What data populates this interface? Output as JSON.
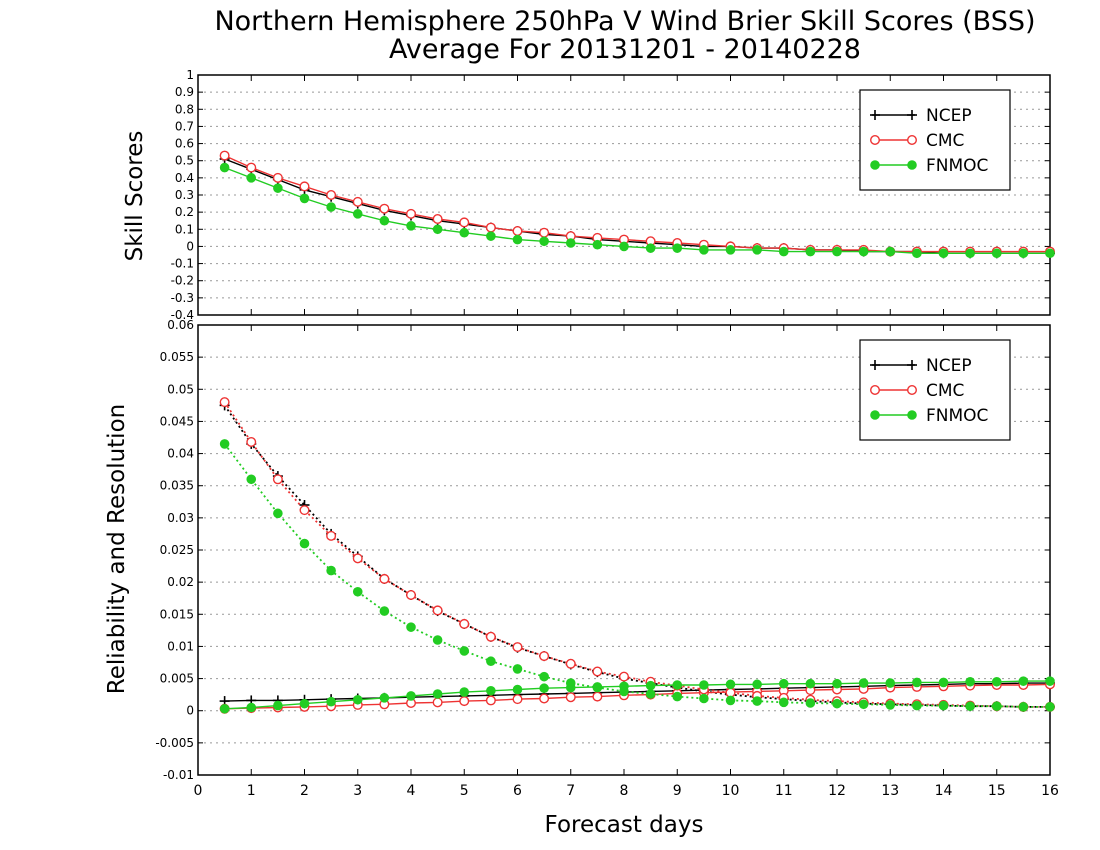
{
  "chart_data": [
    {
      "type": "line",
      "title": "Northern Hemisphere 250hPa V Wind Brier Skill Scores (BSS)",
      "subtitle": "Average For 20131201 - 20140228",
      "xlabel": "Forecast days",
      "ylabel": "Skill Scores",
      "xlim": [
        0,
        16
      ],
      "ylim": [
        -0.4,
        1
      ],
      "x_ticks": [
        "0",
        "1",
        "2",
        "3",
        "4",
        "5",
        "6",
        "7",
        "8",
        "9",
        "10",
        "11",
        "12",
        "13",
        "14",
        "15",
        "16"
      ],
      "y_ticks": [
        "-0.4",
        "-0.3",
        "-0.2",
        "-0.1",
        "0",
        "0.1",
        "0.2",
        "0.3",
        "0.4",
        "0.5",
        "0.6",
        "0.7",
        "0.8",
        "0.9",
        "1"
      ],
      "grid": true,
      "legend_position": "top-right",
      "x": [
        0.5,
        1,
        1.5,
        2,
        2.5,
        3,
        3.5,
        4,
        4.5,
        5,
        5.5,
        6,
        6.5,
        7,
        7.5,
        8,
        8.5,
        9,
        9.5,
        10,
        10.5,
        11,
        11.5,
        12,
        12.5,
        13,
        13.5,
        14,
        14.5,
        15,
        15.5,
        16
      ],
      "series": [
        {
          "name": "NCEP",
          "color": "#000000",
          "marker": "plus",
          "values": [
            0.51,
            0.45,
            0.39,
            0.33,
            0.29,
            0.25,
            0.21,
            0.18,
            0.15,
            0.13,
            0.11,
            0.09,
            0.07,
            0.06,
            0.04,
            0.03,
            0.02,
            0.01,
            0.0,
            0.0,
            -0.01,
            -0.01,
            -0.02,
            -0.02,
            -0.03,
            -0.03,
            -0.03,
            -0.04,
            -0.04,
            -0.04,
            -0.04,
            -0.04
          ]
        },
        {
          "name": "CMC",
          "color": "#ee3333",
          "marker": "open-circle",
          "values": [
            0.53,
            0.46,
            0.4,
            0.35,
            0.3,
            0.26,
            0.22,
            0.19,
            0.16,
            0.14,
            0.11,
            0.09,
            0.08,
            0.06,
            0.05,
            0.04,
            0.03,
            0.02,
            0.01,
            0.0,
            -0.01,
            -0.01,
            -0.02,
            -0.02,
            -0.02,
            -0.03,
            -0.03,
            -0.03,
            -0.03,
            -0.03,
            -0.03,
            -0.03
          ]
        },
        {
          "name": "FNMOC",
          "color": "#22cc22",
          "marker": "filled-circle",
          "values": [
            0.46,
            0.4,
            0.34,
            0.28,
            0.23,
            0.19,
            0.15,
            0.12,
            0.1,
            0.08,
            0.06,
            0.04,
            0.03,
            0.02,
            0.01,
            0.0,
            -0.01,
            -0.01,
            -0.02,
            -0.02,
            -0.02,
            -0.03,
            -0.03,
            -0.03,
            -0.03,
            -0.03,
            -0.04,
            -0.04,
            -0.04,
            -0.04,
            -0.04,
            -0.04
          ]
        }
      ]
    },
    {
      "type": "line",
      "xlabel": "Forecast days",
      "ylabel": "Reliability and Resolution",
      "xlim": [
        0,
        16
      ],
      "ylim": [
        -0.01,
        0.06
      ],
      "x_ticks": [
        "0",
        "1",
        "2",
        "3",
        "4",
        "5",
        "6",
        "7",
        "8",
        "9",
        "10",
        "11",
        "12",
        "13",
        "14",
        "15",
        "16"
      ],
      "y_ticks": [
        "-0.01",
        "-0.005",
        "0",
        "0.005",
        "0.01",
        "0.015",
        "0.02",
        "0.025",
        "0.03",
        "0.035",
        "0.04",
        "0.045",
        "0.05",
        "0.055",
        "0.06"
      ],
      "grid": true,
      "legend_position": "top-right",
      "x": [
        0.5,
        1,
        1.5,
        2,
        2.5,
        3,
        3.5,
        4,
        4.5,
        5,
        5.5,
        6,
        6.5,
        7,
        7.5,
        8,
        8.5,
        9,
        9.5,
        10,
        10.5,
        11,
        11.5,
        12,
        12.5,
        13,
        13.5,
        14,
        14.5,
        15,
        15.5,
        16
      ],
      "series": [
        {
          "name": "NCEP",
          "color": "#000000",
          "marker": "plus",
          "line": "solid",
          "values": [
            0.0015,
            0.0016,
            0.0016,
            0.0017,
            0.0018,
            0.0019,
            0.002,
            0.0021,
            0.0022,
            0.0023,
            0.0024,
            0.0025,
            0.0026,
            0.0027,
            0.0028,
            0.0029,
            0.003,
            0.0031,
            0.0032,
            0.0033,
            0.0034,
            0.0035,
            0.0036,
            0.0037,
            0.0038,
            0.0039,
            0.004,
            0.0041,
            0.0042,
            0.0042,
            0.0043,
            0.0043
          ]
        },
        {
          "name": "NCEP",
          "color": "#000000",
          "marker": "plus",
          "line": "dotted",
          "values": [
            0.0475,
            0.0415,
            0.0365,
            0.032,
            0.0275,
            0.024,
            0.0205,
            0.018,
            0.0155,
            0.0135,
            0.0115,
            0.0098,
            0.0085,
            0.0072,
            0.006,
            0.005,
            0.0043,
            0.0036,
            0.003,
            0.0025,
            0.0021,
            0.0018,
            0.0015,
            0.0013,
            0.0011,
            0.001,
            0.0009,
            0.0008,
            0.0007,
            0.0007,
            0.0006,
            0.0006
          ]
        },
        {
          "name": "CMC",
          "color": "#ee3333",
          "marker": "open-circle",
          "line": "solid",
          "values": [
            0.0003,
            0.0004,
            0.0005,
            0.0006,
            0.0007,
            0.0009,
            0.001,
            0.0012,
            0.0013,
            0.0015,
            0.0016,
            0.0018,
            0.0019,
            0.0021,
            0.0022,
            0.0024,
            0.0025,
            0.0027,
            0.0028,
            0.0029,
            0.003,
            0.0031,
            0.0032,
            0.0033,
            0.0034,
            0.0036,
            0.0037,
            0.0038,
            0.0039,
            0.004,
            0.004,
            0.0041
          ]
        },
        {
          "name": "CMC",
          "color": "#ee3333",
          "marker": "open-circle",
          "line": "dotted",
          "values": [
            0.048,
            0.0418,
            0.036,
            0.0312,
            0.0272,
            0.0237,
            0.0205,
            0.018,
            0.0156,
            0.0135,
            0.0115,
            0.0099,
            0.0085,
            0.0073,
            0.0061,
            0.0053,
            0.0045,
            0.0039,
            0.0033,
            0.0028,
            0.0023,
            0.002,
            0.0017,
            0.0015,
            0.0013,
            0.0011,
            0.001,
            0.0009,
            0.0008,
            0.0007,
            0.0006,
            0.0006
          ]
        },
        {
          "name": "FNMOC",
          "color": "#22cc22",
          "marker": "filled-circle",
          "line": "solid",
          "values": [
            0.0003,
            0.0005,
            0.0008,
            0.0011,
            0.0014,
            0.0017,
            0.002,
            0.0023,
            0.0026,
            0.0029,
            0.0031,
            0.0033,
            0.0035,
            0.0036,
            0.0037,
            0.0038,
            0.0039,
            0.004,
            0.004,
            0.0041,
            0.0041,
            0.0042,
            0.0042,
            0.0042,
            0.0043,
            0.0043,
            0.0044,
            0.0044,
            0.0045,
            0.0045,
            0.0046,
            0.0046
          ]
        },
        {
          "name": "FNMOC",
          "color": "#22cc22",
          "marker": "filled-circle",
          "line": "dotted",
          "values": [
            0.0415,
            0.036,
            0.0307,
            0.026,
            0.0218,
            0.0185,
            0.0155,
            0.013,
            0.011,
            0.0093,
            0.0077,
            0.0065,
            0.0053,
            0.0043,
            0.0036,
            0.003,
            0.0026,
            0.0022,
            0.0019,
            0.0016,
            0.0015,
            0.0013,
            0.0012,
            0.0011,
            0.001,
            0.0009,
            0.0008,
            0.0008,
            0.0007,
            0.0007,
            0.0006,
            0.0006
          ]
        }
      ],
      "legend": [
        "NCEP",
        "CMC",
        "FNMOC"
      ]
    }
  ]
}
